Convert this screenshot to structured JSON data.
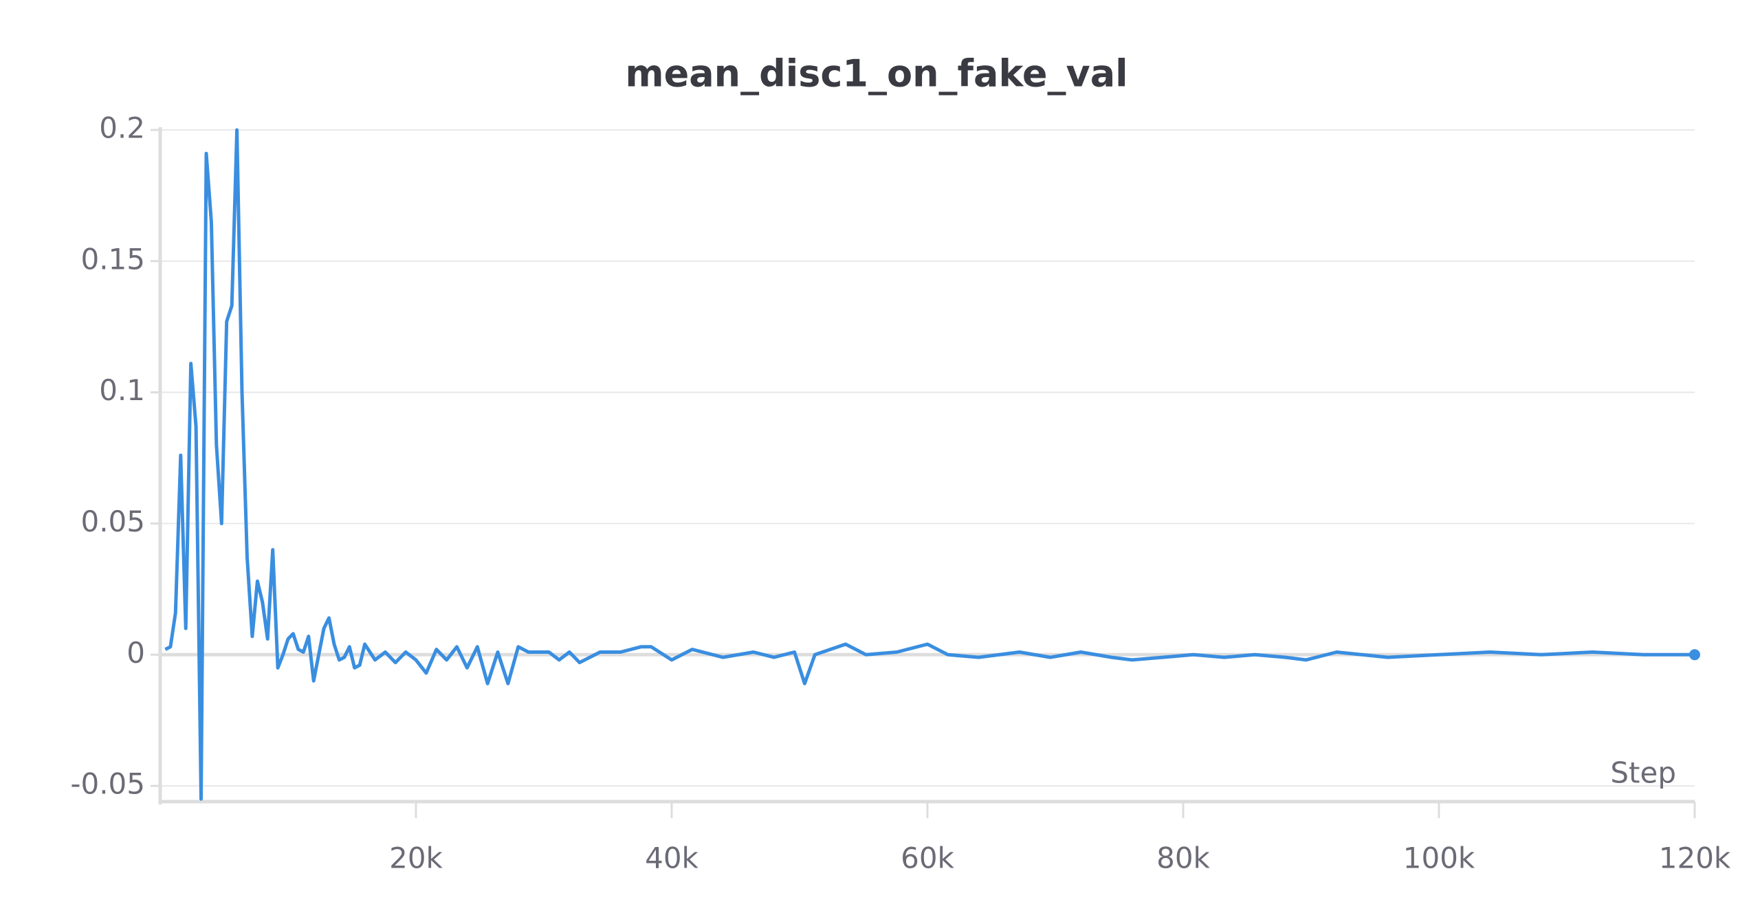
{
  "chart_data": {
    "type": "line",
    "title": "mean_disc1_on_fake_val",
    "x_label": "Step",
    "xlim": [
      0,
      120000
    ],
    "ylim": [
      -0.056,
      0.2
    ],
    "xticks": [
      {
        "value": 20000,
        "label": "20k"
      },
      {
        "value": 40000,
        "label": "40k"
      },
      {
        "value": 60000,
        "label": "60k"
      },
      {
        "value": 80000,
        "label": "80k"
      },
      {
        "value": 100000,
        "label": "100k"
      },
      {
        "value": 120000,
        "label": "120k"
      }
    ],
    "yticks": [
      0.2,
      0.15,
      0.1,
      0.05,
      0,
      -0.05
    ],
    "grid": true,
    "series": [
      {
        "name": "mean_disc1_on_fake_val",
        "color": "#3a8ee0",
        "x": [
          400,
          800,
          1200,
          1600,
          2000,
          2400,
          2800,
          3200,
          3600,
          4000,
          4400,
          4800,
          5200,
          5600,
          6000,
          6400,
          6800,
          7200,
          7600,
          8000,
          8400,
          8800,
          9200,
          9600,
          10000,
          10400,
          10800,
          11200,
          11600,
          12000,
          12400,
          12800,
          13200,
          13600,
          14000,
          14400,
          14800,
          15200,
          15600,
          16000,
          16800,
          17600,
          18400,
          19200,
          20000,
          20800,
          21600,
          22400,
          23200,
          24000,
          24800,
          25600,
          26400,
          27200,
          28000,
          28800,
          30400,
          31200,
          32000,
          32800,
          34400,
          36000,
          37600,
          38400,
          40000,
          41600,
          44000,
          46400,
          48000,
          49600,
          50400,
          51200,
          53600,
          55200,
          57600,
          60000,
          61600,
          64000,
          67200,
          69600,
          72000,
          74400,
          76000,
          78400,
          80800,
          83200,
          85600,
          88000,
          89600,
          92000,
          96000,
          100000,
          104000,
          108000,
          112000,
          116000,
          120000
        ],
        "values": [
          0.002,
          0.003,
          0.016,
          0.076,
          0.01,
          0.111,
          0.087,
          -0.055,
          0.191,
          0.165,
          0.08,
          0.05,
          0.127,
          0.133,
          0.2,
          0.1,
          0.037,
          0.007,
          0.028,
          0.02,
          0.006,
          0.04,
          -0.005,
          0,
          0.006,
          0.008,
          0.002,
          0.001,
          0.007,
          -0.01,
          0,
          0.01,
          0.014,
          0.004,
          -0.002,
          -0.001,
          0.003,
          -0.005,
          -0.004,
          0.004,
          -0.002,
          0.001,
          -0.003,
          0.001,
          -0.002,
          -0.007,
          0.002,
          -0.002,
          0.003,
          -0.005,
          0.003,
          -0.011,
          0.001,
          -0.011,
          0.003,
          0.001,
          0.001,
          -0.002,
          0.001,
          -0.003,
          0.001,
          0.001,
          0.003,
          0.003,
          -0.002,
          0.002,
          -0.001,
          0.001,
          -0.001,
          0.001,
          -0.011,
          0,
          0.004,
          0,
          0.001,
          0.004,
          0,
          -0.001,
          0.001,
          -0.001,
          0.001,
          -0.001,
          -0.002,
          -0.001,
          0,
          -0.001,
          0,
          -0.001,
          -0.002,
          0.001,
          -0.001,
          0,
          0.001,
          0,
          0.001,
          0,
          0
        ]
      }
    ]
  }
}
